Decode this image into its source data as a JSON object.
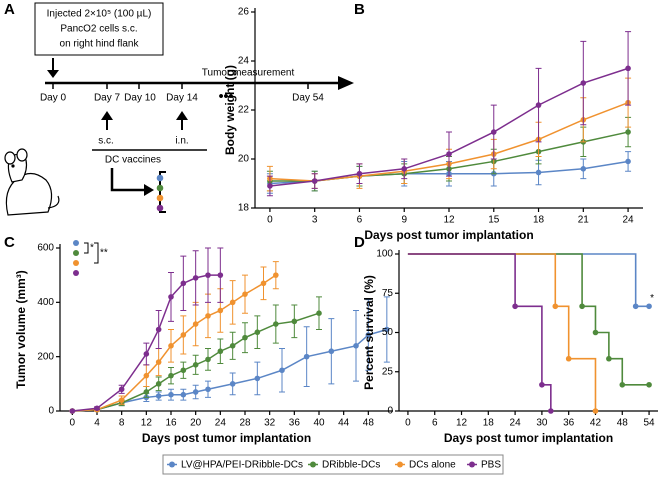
{
  "panels": [
    "A",
    "B",
    "C",
    "D"
  ],
  "diagram": {
    "injection": [
      "Injected 2×10⁵ (100 µL)",
      "PancO2 cells s.c.",
      "on right hind flank"
    ],
    "days": [
      "Day 0",
      "Day 7",
      "Day 10",
      "Day 14",
      "•••",
      "Day 54"
    ],
    "measurement": "Tumor measurement",
    "routes": [
      "s.c.",
      "i.n."
    ],
    "vaccines": "DC vaccines"
  },
  "chart_data": [
    {
      "type": "line",
      "ylabel": "Body weight (g)",
      "xlabel": "Days post tumor implantation",
      "x": [
        0,
        3,
        6,
        9,
        12,
        15,
        18,
        21,
        24
      ],
      "xlim": [
        -1,
        25
      ],
      "xticks": [
        0,
        3,
        6,
        9,
        12,
        15,
        18,
        21,
        24
      ],
      "ylim": [
        18,
        26
      ],
      "yticks": [
        18,
        20,
        22,
        24,
        26
      ],
      "series": [
        {
          "color": "#5b86c6",
          "values": [
            19.0,
            19.1,
            19.3,
            19.4,
            19.4,
            19.4,
            19.45,
            19.6,
            19.9
          ],
          "errors": [
            0.4,
            0.4,
            0.4,
            0.5,
            0.5,
            0.5,
            0.5,
            0.4,
            0.4
          ]
        },
        {
          "color": "#4f8a3c",
          "values": [
            19.1,
            19.1,
            19.3,
            19.4,
            19.6,
            19.9,
            20.3,
            20.7,
            21.1
          ],
          "errors": [
            0.4,
            0.4,
            0.4,
            0.4,
            0.5,
            0.5,
            0.5,
            0.6,
            0.6
          ]
        },
        {
          "color": "#f0922f",
          "values": [
            19.2,
            19.1,
            19.3,
            19.5,
            19.8,
            20.2,
            20.8,
            21.6,
            22.3
          ],
          "errors": [
            0.5,
            0.3,
            0.5,
            0.5,
            0.6,
            0.6,
            0.7,
            0.9,
            1.0
          ]
        },
        {
          "color": "#7d2e8e",
          "values": [
            18.9,
            19.1,
            19.4,
            19.6,
            20.2,
            21.1,
            22.2,
            23.1,
            23.7
          ],
          "errors": [
            0.4,
            0.3,
            0.4,
            0.4,
            0.9,
            1.1,
            1.5,
            1.7,
            1.5
          ]
        }
      ]
    },
    {
      "type": "line",
      "ylabel": "Tumor volume (mm³)",
      "xlabel": "Days post tumor implantation",
      "xlim": [
        -2,
        52
      ],
      "xticks": [
        0,
        4,
        8,
        12,
        16,
        20,
        24,
        28,
        32,
        36,
        40,
        44,
        48
      ],
      "ylim": [
        0,
        600
      ],
      "yticks": [
        0,
        200,
        400,
        600
      ],
      "annotations": [
        "*",
        "**"
      ],
      "series": [
        {
          "color": "#5b86c6",
          "x": [
            0,
            4,
            8,
            12,
            14,
            16,
            18,
            20,
            22,
            26,
            30,
            34,
            38,
            42,
            46,
            48,
            51
          ],
          "values": [
            0,
            5,
            30,
            50,
            55,
            60,
            60,
            70,
            80,
            100,
            120,
            150,
            200,
            220,
            240,
            280,
            300
          ],
          "errors": [
            0,
            5,
            10,
            15,
            15,
            20,
            20,
            25,
            30,
            40,
            60,
            80,
            110,
            120,
            130,
            130,
            120
          ]
        },
        {
          "color": "#4f8a3c",
          "x": [
            0,
            4,
            8,
            12,
            14,
            16,
            18,
            20,
            22,
            24,
            26,
            28,
            30,
            33,
            36,
            40
          ],
          "values": [
            0,
            5,
            30,
            70,
            100,
            130,
            150,
            170,
            190,
            220,
            240,
            270,
            290,
            320,
            330,
            360
          ],
          "errors": [
            0,
            5,
            10,
            20,
            25,
            30,
            30,
            35,
            40,
            45,
            50,
            55,
            60,
            70,
            60,
            60
          ]
        },
        {
          "color": "#f0922f",
          "x": [
            0,
            4,
            8,
            12,
            14,
            16,
            18,
            20,
            22,
            24,
            26,
            28,
            31,
            33
          ],
          "values": [
            0,
            5,
            40,
            130,
            180,
            240,
            280,
            320,
            350,
            370,
            400,
            430,
            470,
            500
          ],
          "errors": [
            0,
            5,
            15,
            40,
            50,
            60,
            70,
            80,
            80,
            80,
            80,
            70,
            60,
            50
          ]
        },
        {
          "color": "#7d2e8e",
          "x": [
            0,
            4,
            8,
            12,
            14,
            16,
            18,
            20,
            22,
            24
          ],
          "values": [
            0,
            10,
            80,
            210,
            300,
            420,
            470,
            490,
            500,
            500
          ],
          "errors": [
            0,
            5,
            15,
            40,
            70,
            90,
            100,
            100,
            100,
            100
          ]
        }
      ]
    },
    {
      "type": "step",
      "ylabel": "Percent survival (%)",
      "xlabel": "Days post tumor implantation",
      "xlim": [
        -2,
        56
      ],
      "xticks": [
        0,
        6,
        12,
        18,
        24,
        30,
        36,
        42,
        48,
        54
      ],
      "ylim": [
        0,
        100
      ],
      "yticks": [
        0,
        25,
        50,
        75,
        100
      ],
      "annotations": [
        "*"
      ],
      "legend": "bottom",
      "series": [
        {
          "name": "LV@HPA/PEI-DRibble-DCs",
          "color": "#5b86c6",
          "x": [
            0,
            51,
            54
          ],
          "values": [
            100,
            66.7,
            66.7
          ]
        },
        {
          "name": "DRibble-DCs",
          "color": "#4f8a3c",
          "x": [
            0,
            39,
            42,
            45,
            48,
            54
          ],
          "values": [
            100,
            66.7,
            50,
            33.3,
            16.7,
            16.7
          ]
        },
        {
          "name": "DCs alone",
          "color": "#f0922f",
          "x": [
            0,
            33,
            36,
            42
          ],
          "values": [
            100,
            66.7,
            33.3,
            0
          ]
        },
        {
          "name": "PBS",
          "color": "#7d2e8e",
          "x": [
            0,
            24,
            30,
            32
          ],
          "values": [
            100,
            66.7,
            16.7,
            0
          ]
        }
      ]
    }
  ]
}
